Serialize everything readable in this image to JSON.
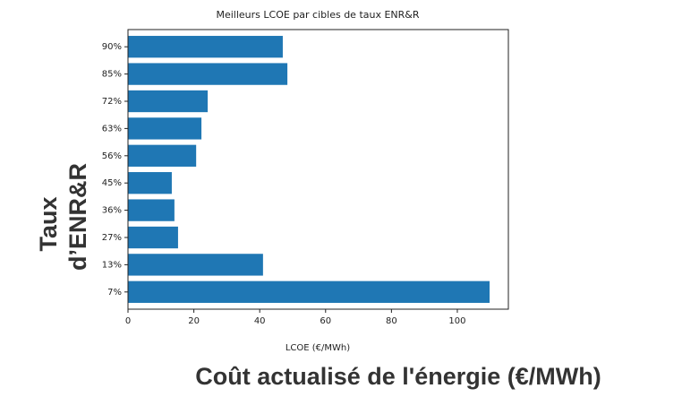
{
  "chart_data": {
    "type": "barh",
    "title": "Meilleurs LCOE par cibles de taux ENR&R",
    "xlabel": "LCOE (€/MWh)",
    "overlay_xlabel": "Coût actualisé de l'énergie (€/MWh)",
    "overlay_ylabel": [
      "Taux",
      "d’ENR&R"
    ],
    "categories": [
      "7%",
      "13%",
      "27%",
      "36%",
      "45%",
      "56%",
      "63%",
      "72%",
      "85%",
      "90%"
    ],
    "values": [
      109.8,
      41,
      15.2,
      14.1,
      13.3,
      20.7,
      22.3,
      24.2,
      48.4,
      47
    ],
    "color": "#1f77b4",
    "xlim": [
      0,
      115.5
    ],
    "xticks": [
      0,
      20,
      40,
      60,
      80,
      100
    ]
  }
}
